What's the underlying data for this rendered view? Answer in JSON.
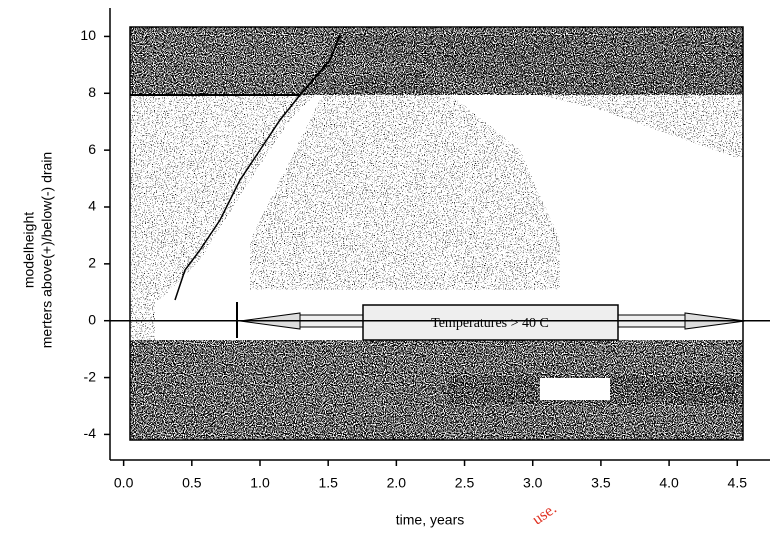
{
  "chart_data": {
    "type": "density",
    "ylabel": [
      "modelheight",
      "merters above(+)/below(-) drain"
    ],
    "xlabel": "time, years",
    "annotation": "Temperatures > 40 C",
    "watermark": "use.",
    "xlim": [
      -0.1,
      4.74
    ],
    "ylim": [
      -4.9,
      11.0
    ],
    "xticks": [
      {
        "value": 0,
        "label": "0.0"
      },
      0.5,
      {
        "value": 1,
        "label": "1.0"
      },
      1.5,
      {
        "value": 2,
        "label": "2.0"
      },
      2.5,
      {
        "value": 3,
        "label": "3.0"
      },
      3.5,
      {
        "value": 4,
        "label": "4.0"
      },
      4.5
    ],
    "yticks": [
      -4,
      -2,
      0,
      2,
      4,
      6,
      8,
      10
    ]
  }
}
